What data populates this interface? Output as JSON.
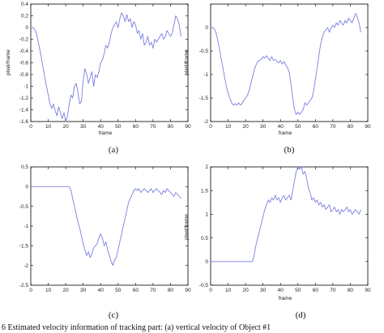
{
  "figure": {
    "bottom_caption": "6    Estimated velocity information of tracking part: (a) vertical velocity of Object #1"
  },
  "chart_data": [
    {
      "id": "a",
      "caption": "(a)",
      "type": "line",
      "xlabel": "frame",
      "ylabel": "pixel/frame",
      "xlim": [
        0,
        90
      ],
      "ylim": [
        -1.6,
        0.4
      ],
      "xticks": [
        0,
        10,
        20,
        30,
        40,
        50,
        60,
        70,
        80,
        90
      ],
      "yticks": [
        -1.6,
        -1.4,
        -1.2,
        -1,
        -0.8,
        -0.6,
        -0.4,
        -0.2,
        0,
        0.2,
        0.4
      ],
      "ytick_labels": [
        "-1.6",
        "-1.4",
        "-1.2",
        "-1",
        "-0.8",
        "-0.6",
        "-0.4",
        "-0.2",
        "0",
        "0.2",
        "0.4"
      ],
      "color": "#7b7fe0",
      "x": [
        0,
        1,
        2,
        3,
        4,
        5,
        6,
        7,
        8,
        9,
        10,
        11,
        12,
        13,
        14,
        15,
        16,
        17,
        18,
        19,
        20,
        21,
        22,
        23,
        24,
        25,
        26,
        27,
        28,
        29,
        30,
        31,
        32,
        33,
        34,
        35,
        36,
        37,
        38,
        39,
        40,
        41,
        42,
        43,
        44,
        45,
        46,
        47,
        48,
        49,
        50,
        51,
        52,
        53,
        54,
        55,
        56,
        57,
        58,
        59,
        60,
        61,
        62,
        63,
        64,
        65,
        66,
        67,
        68,
        69,
        70,
        71,
        72,
        73,
        74,
        75,
        76,
        77,
        78,
        79,
        80,
        81,
        82,
        83,
        84,
        85,
        86
      ],
      "y": [
        0.0,
        0.0,
        -0.02,
        -0.08,
        -0.2,
        -0.35,
        -0.5,
        -0.68,
        -0.85,
        -1.0,
        -1.15,
        -1.3,
        -1.38,
        -1.3,
        -1.42,
        -1.5,
        -1.35,
        -1.45,
        -1.55,
        -1.45,
        -1.6,
        -1.5,
        -1.3,
        -1.15,
        -1.2,
        -1.0,
        -0.95,
        -1.1,
        -1.3,
        -1.25,
        -0.9,
        -0.7,
        -0.8,
        -0.95,
        -0.85,
        -0.75,
        -1.0,
        -0.8,
        -0.85,
        -0.75,
        -0.6,
        -0.55,
        -0.45,
        -0.3,
        -0.35,
        -0.25,
        -0.1,
        0.0,
        0.05,
        0.1,
        0.0,
        0.15,
        0.25,
        0.2,
        0.1,
        0.22,
        0.1,
        0.15,
        0.0,
        0.1,
        0.05,
        -0.1,
        -0.05,
        -0.2,
        -0.1,
        -0.3,
        -0.25,
        -0.15,
        -0.3,
        -0.25,
        -0.35,
        -0.2,
        -0.25,
        -0.2,
        -0.15,
        -0.1,
        -0.2,
        -0.15,
        -0.05,
        -0.1,
        -0.15,
        -0.1,
        0.05,
        0.2,
        0.15,
        0.05,
        -0.15
      ]
    },
    {
      "id": "b",
      "caption": "(b)",
      "type": "line",
      "xlabel": "frame",
      "ylabel": "pixel/frame",
      "xlim": [
        0,
        90
      ],
      "ylim": [
        -2,
        0.5
      ],
      "xticks": [
        0,
        10,
        20,
        30,
        40,
        50,
        60,
        70,
        80,
        90
      ],
      "yticks": [
        -2,
        -1.5,
        -1,
        -0.5,
        0
      ],
      "ytick_labels": [
        "-2",
        "-1.5",
        "-1",
        "-0.5",
        "0"
      ],
      "color": "#7b7fe0",
      "x": [
        0,
        1,
        2,
        3,
        4,
        5,
        6,
        7,
        8,
        9,
        10,
        11,
        12,
        13,
        14,
        15,
        16,
        17,
        18,
        19,
        20,
        21,
        22,
        23,
        24,
        25,
        26,
        27,
        28,
        29,
        30,
        31,
        32,
        33,
        34,
        35,
        36,
        37,
        38,
        39,
        40,
        41,
        42,
        43,
        44,
        45,
        46,
        47,
        48,
        49,
        50,
        51,
        52,
        53,
        54,
        55,
        56,
        57,
        58,
        59,
        60,
        61,
        62,
        63,
        64,
        65,
        66,
        67,
        68,
        69,
        70,
        71,
        72,
        73,
        74,
        75,
        76,
        77,
        78,
        79,
        80,
        81,
        82,
        83,
        84,
        85,
        86
      ],
      "y": [
        0.0,
        0.0,
        -0.02,
        -0.1,
        -0.25,
        -0.45,
        -0.65,
        -0.85,
        -1.05,
        -1.25,
        -1.4,
        -1.5,
        -1.6,
        -1.65,
        -1.62,
        -1.65,
        -1.6,
        -1.65,
        -1.62,
        -1.55,
        -1.5,
        -1.45,
        -1.35,
        -1.2,
        -1.05,
        -0.9,
        -0.8,
        -0.72,
        -0.7,
        -0.68,
        -0.62,
        -0.65,
        -0.6,
        -0.65,
        -0.7,
        -0.62,
        -0.7,
        -0.68,
        -0.72,
        -0.75,
        -0.7,
        -0.78,
        -0.72,
        -0.8,
        -0.85,
        -0.95,
        -1.2,
        -1.5,
        -1.75,
        -1.85,
        -1.8,
        -1.85,
        -1.8,
        -1.75,
        -1.6,
        -1.65,
        -1.6,
        -1.55,
        -1.5,
        -1.35,
        -1.1,
        -0.85,
        -0.6,
        -0.35,
        -0.2,
        -0.1,
        -0.05,
        0.0,
        -0.1,
        0.0,
        0.05,
        0.0,
        0.1,
        0.05,
        0.15,
        0.1,
        0.05,
        0.15,
        0.1,
        0.2,
        0.15,
        0.1,
        0.2,
        0.3,
        0.22,
        0.1,
        -0.1
      ]
    },
    {
      "id": "c",
      "caption": "(c)",
      "type": "line",
      "xlabel": "",
      "ylabel": "",
      "xlim": [
        0,
        90
      ],
      "ylim": [
        -2.5,
        0.5
      ],
      "xticks": [
        0,
        10,
        20,
        30,
        40,
        50,
        60,
        70,
        80,
        90
      ],
      "yticks": [
        -2.5,
        -2,
        -1.5,
        -1,
        -0.5,
        0,
        0.5
      ],
      "ytick_labels": [
        "-2.5",
        "-2",
        "-1.5",
        "-1",
        "-0.5",
        "0",
        "0.5"
      ],
      "color": "#7b7fe0",
      "x": [
        0,
        2,
        4,
        6,
        8,
        10,
        12,
        14,
        16,
        18,
        20,
        22,
        23,
        24,
        25,
        26,
        27,
        28,
        29,
        30,
        31,
        32,
        33,
        34,
        35,
        36,
        37,
        38,
        39,
        40,
        41,
        42,
        43,
        44,
        45,
        46,
        47,
        48,
        49,
        50,
        51,
        52,
        53,
        54,
        55,
        56,
        57,
        58,
        59,
        60,
        61,
        62,
        63,
        64,
        65,
        66,
        67,
        68,
        69,
        70,
        71,
        72,
        73,
        74,
        75,
        76,
        77,
        78,
        79,
        80,
        81,
        82,
        83,
        84,
        85,
        86
      ],
      "y": [
        0,
        0,
        0,
        0,
        0,
        0,
        0,
        0,
        0,
        0,
        0,
        0,
        -0.1,
        -0.3,
        -0.5,
        -0.7,
        -0.9,
        -1.05,
        -1.25,
        -1.45,
        -1.6,
        -1.75,
        -1.65,
        -1.8,
        -1.7,
        -1.55,
        -1.5,
        -1.45,
        -1.3,
        -1.2,
        -1.3,
        -1.5,
        -1.4,
        -1.6,
        -1.75,
        -1.9,
        -2.0,
        -1.85,
        -1.8,
        -1.6,
        -1.4,
        -1.2,
        -1.0,
        -0.8,
        -0.6,
        -0.4,
        -0.3,
        -0.2,
        -0.1,
        -0.05,
        -0.1,
        -0.05,
        -0.15,
        -0.1,
        -0.05,
        -0.1,
        -0.15,
        -0.1,
        -0.05,
        -0.15,
        -0.1,
        -0.05,
        -0.1,
        -0.15,
        -0.2,
        -0.1,
        -0.15,
        -0.05,
        -0.1,
        -0.15,
        -0.2,
        -0.25,
        -0.15,
        -0.2,
        -0.25,
        -0.3
      ]
    },
    {
      "id": "d",
      "caption": "(d)",
      "type": "line",
      "xlabel": "frame",
      "ylabel": "pixel/frame",
      "xlim": [
        0,
        90
      ],
      "ylim": [
        -0.5,
        2
      ],
      "xticks": [
        0,
        10,
        20,
        30,
        40,
        50,
        60,
        70,
        80,
        90
      ],
      "yticks": [
        -0.5,
        0,
        0.5,
        1,
        1.5,
        2
      ],
      "ytick_labels": [
        "-0.5",
        "0",
        "0.5",
        "1",
        "1.5",
        "2"
      ],
      "color": "#7b7fe0",
      "x": [
        0,
        2,
        4,
        6,
        8,
        10,
        12,
        14,
        16,
        18,
        20,
        22,
        24,
        25,
        26,
        27,
        28,
        29,
        30,
        31,
        32,
        33,
        34,
        35,
        36,
        37,
        38,
        39,
        40,
        41,
        42,
        43,
        44,
        45,
        46,
        47,
        48,
        49,
        50,
        51,
        52,
        53,
        54,
        55,
        56,
        57,
        58,
        59,
        60,
        61,
        62,
        63,
        64,
        65,
        66,
        67,
        68,
        69,
        70,
        71,
        72,
        73,
        74,
        75,
        76,
        77,
        78,
        79,
        80,
        81,
        82,
        83,
        84,
        85,
        86
      ],
      "y": [
        0,
        0,
        0,
        0,
        0,
        0,
        0,
        0,
        0,
        0,
        0,
        0,
        0,
        0.15,
        0.35,
        0.5,
        0.65,
        0.8,
        0.95,
        1.1,
        1.2,
        1.3,
        1.25,
        1.35,
        1.3,
        1.4,
        1.3,
        1.35,
        1.25,
        1.35,
        1.4,
        1.3,
        1.35,
        1.4,
        1.3,
        1.5,
        1.7,
        1.9,
        2.0,
        1.95,
        2.0,
        1.85,
        1.9,
        1.75,
        1.55,
        1.45,
        1.3,
        1.35,
        1.25,
        1.3,
        1.2,
        1.25,
        1.15,
        1.2,
        1.1,
        1.15,
        1.2,
        1.05,
        1.1,
        1.15,
        1.05,
        1.1,
        1.0,
        1.1,
        1.05,
        1.1,
        1.15,
        1.05,
        1.1,
        1.0,
        1.05,
        1.1,
        1.05,
        1.0,
        1.1
      ]
    }
  ]
}
